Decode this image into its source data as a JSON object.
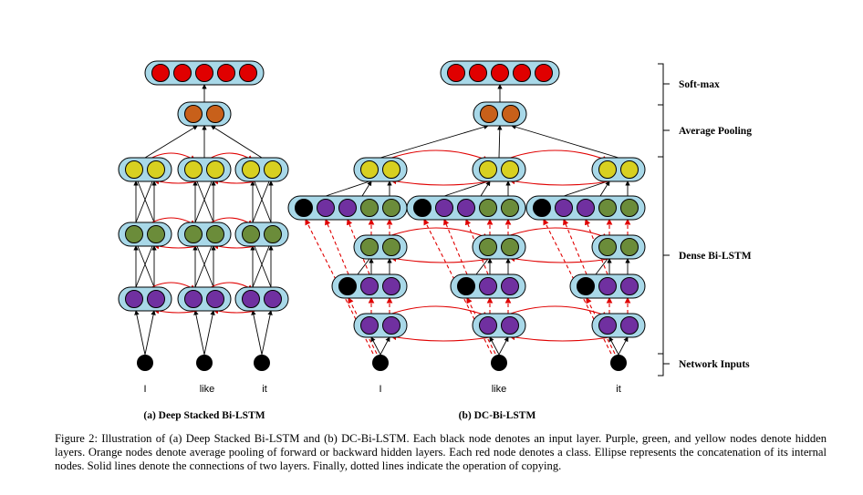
{
  "figure": {
    "left": {
      "words": [
        "I",
        "like",
        "it"
      ],
      "subcaption": "(a) Deep Stacked Bi-LSTM"
    },
    "right": {
      "words": [
        "I",
        "like",
        "it"
      ],
      "subcaption": "(b) DC-Bi-LSTM"
    },
    "braces": {
      "softmax": "Soft-max",
      "pooling": "Average Pooling",
      "dense": "Dense Bi-LSTM",
      "inputs": "Network Inputs"
    },
    "colors": {
      "input": "#000000",
      "hidden1": "#7030a0",
      "hidden2": "#6b8c3a",
      "hidden3": "#d8d020",
      "pooling": "#c8601a",
      "class": "#e00000",
      "ellipse_fill": "#a8d8e8",
      "copy_line": "#ff0000"
    }
  },
  "caption": "Figure 2:  Illustration of (a) Deep Stacked Bi-LSTM and (b) DC-Bi-LSTM. Each black node denotes an input layer. Purple, green, and yellow nodes denote hidden layers.  Orange nodes denote average pooling of forward or backward hidden layers.  Each red node denotes a class. Ellipse represents the concatenation of its internal nodes. Solid lines denote the connections of two layers. Finally, dotted lines indicate the operation of copying."
}
